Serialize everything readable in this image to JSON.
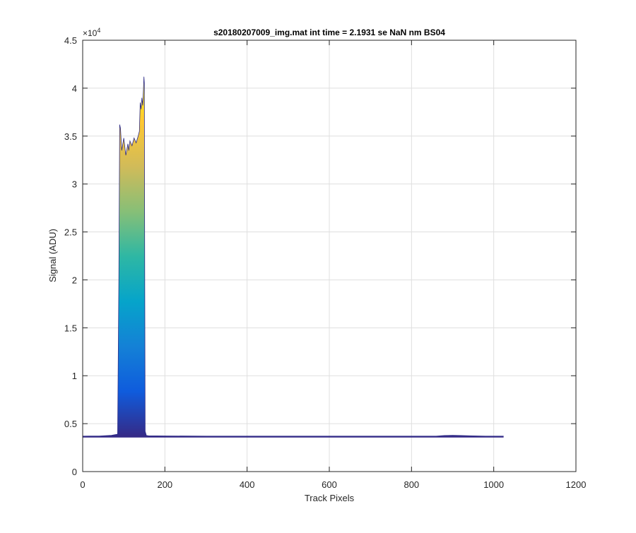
{
  "chart_data": {
    "type": "area",
    "title": "s20180207009_img.mat int time = 2.1931 se  NaN nm BS04",
    "xlabel": "Track Pixels",
    "ylabel": "Signal (ADU)",
    "y_exponent_label": "×10",
    "y_exponent_power": "4",
    "xlim": [
      0,
      1200
    ],
    "ylim": [
      0,
      45000
    ],
    "x_ticks": [
      0,
      200,
      400,
      600,
      800,
      1000,
      1200
    ],
    "y_ticks": [
      0,
      5000,
      10000,
      15000,
      20000,
      25000,
      30000,
      35000,
      40000,
      45000
    ],
    "x_tick_labels": [
      "0",
      "200",
      "400",
      "600",
      "800",
      "1000",
      "1200"
    ],
    "y_tick_labels": [
      "0",
      "0.5",
      "1",
      "1.5",
      "2",
      "2.5",
      "3",
      "3.5",
      "4",
      "4.5"
    ],
    "grid": true,
    "colormap": [
      "#352a87",
      "#0f5cdd",
      "#1481d6",
      "#06a4ca",
      "#2eb7a4",
      "#87bf77",
      "#d1bb59",
      "#fec832",
      "#f9fb0e"
    ],
    "series": [
      {
        "x": [
          0,
          40,
          70,
          85,
          88,
          90,
          92,
          95,
          100,
          105,
          110,
          112,
          115,
          120,
          125,
          130,
          135,
          138,
          140,
          142,
          144,
          146,
          148,
          149,
          150,
          151,
          152,
          155,
          160,
          200,
          300,
          400,
          500,
          600,
          700,
          800,
          860,
          880,
          900,
          920,
          940,
          960,
          980,
          1000,
          1024
        ],
        "y": [
          3700,
          3710,
          3780,
          3900,
          20000,
          36200,
          35800,
          33500,
          34800,
          33000,
          34200,
          33500,
          34500,
          34000,
          34800,
          34300,
          35000,
          35500,
          38500,
          37800,
          39000,
          38200,
          40000,
          41200,
          40500,
          20000,
          4200,
          3760,
          3740,
          3720,
          3700,
          3700,
          3700,
          3700,
          3700,
          3700,
          3700,
          3760,
          3780,
          3760,
          3740,
          3720,
          3700,
          3700,
          3700
        ]
      }
    ]
  }
}
